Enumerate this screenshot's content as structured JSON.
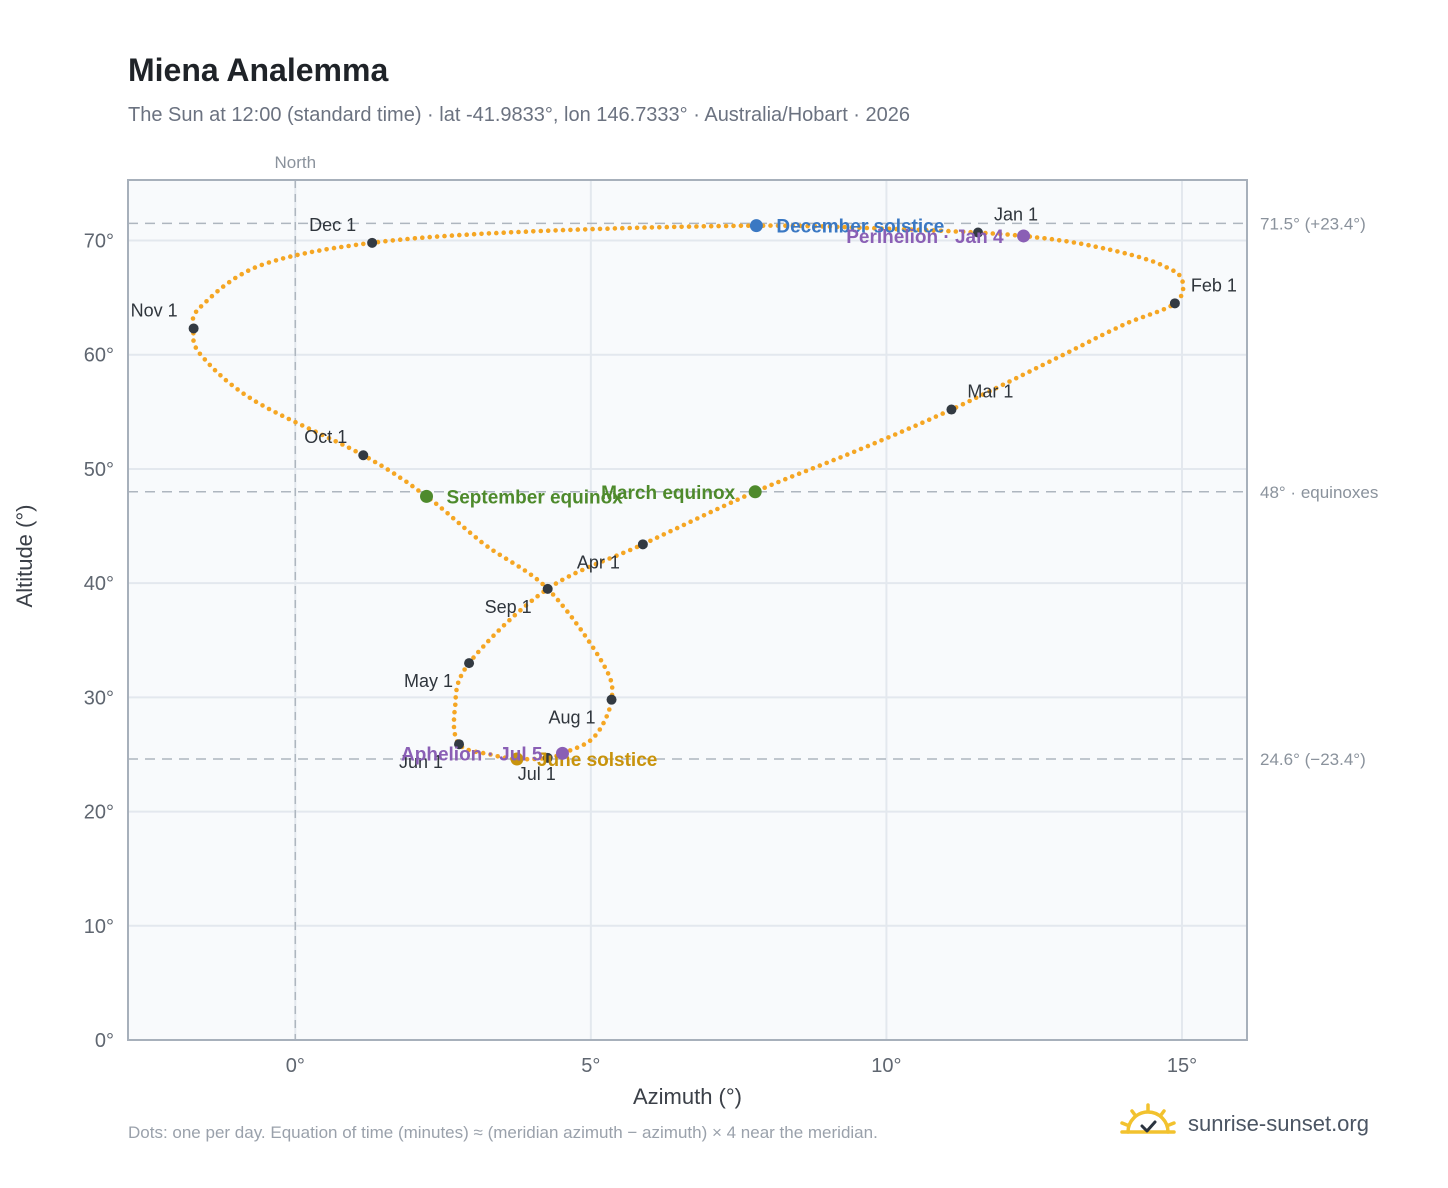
{
  "header": {
    "title": "Miena Analemma",
    "subtitle": "The Sun at 12:00 (standard time) · lat -41.9833°, lon 146.7333° · Australia/Hobart · 2026"
  },
  "footer": {
    "note": "Dots: one per day. Equation of time (minutes) ≈ (meridian azimuth − azimuth) × 4 near the meridian.",
    "brand": "sunrise-sunset.org",
    "brand_icon": "sun-check-icon"
  },
  "colors": {
    "path": "#f5a623",
    "month_dot": "#333a42",
    "equinox": "#4e8a2c",
    "solstice_dec": "#3a78c3",
    "solstice_jun": "#c8930c",
    "apsis": "#8a5fb5",
    "reference_line": "#aeb6bf",
    "plot_bg": "#f8fafc",
    "grid": "#e3e8ee"
  },
  "chart_data": {
    "type": "scatter",
    "xlabel": "Azimuth (°)",
    "ylabel": "Altitude (°)",
    "xlim": [
      -2.83,
      16.1
    ],
    "ylim": [
      0,
      75.3
    ],
    "x_ticks": [
      0,
      5,
      10,
      15
    ],
    "x_tick_labels": [
      "0°",
      "5°",
      "10°",
      "15°"
    ],
    "y_ticks": [
      0,
      10,
      20,
      30,
      40,
      50,
      60,
      70
    ],
    "y_tick_labels": [
      "0°",
      "10°",
      "20°",
      "30°",
      "40°",
      "50°",
      "60°",
      "70°"
    ],
    "grid": true,
    "north_line": {
      "x": 0,
      "label": "North"
    },
    "reference_lines": [
      {
        "y": 71.5,
        "label": "71.5° (+23.4°)"
      },
      {
        "y": 48.0,
        "label": "48° · equinoxes"
      },
      {
        "y": 24.6,
        "label": "24.6° (−23.4°)"
      }
    ],
    "path_knots": [
      [
        11.55,
        70.7
      ],
      [
        12.32,
        70.4
      ],
      [
        13.2,
        69.8
      ],
      [
        14.1,
        68.8
      ],
      [
        14.68,
        67.8
      ],
      [
        15.0,
        66.6
      ],
      [
        14.88,
        64.5
      ],
      [
        14.0,
        62.6
      ],
      [
        12.8,
        59.5
      ],
      [
        11.1,
        55.2
      ],
      [
        9.5,
        51.6
      ],
      [
        7.78,
        48.0
      ],
      [
        5.88,
        43.4
      ],
      [
        4.27,
        39.5
      ],
      [
        2.94,
        33.0
      ],
      [
        2.7,
        29.0
      ],
      [
        2.77,
        25.9
      ],
      [
        3.3,
        25.0
      ],
      [
        3.75,
        24.6
      ],
      [
        4.27,
        24.7
      ],
      [
        4.52,
        25.1
      ],
      [
        5.05,
        26.5
      ],
      [
        5.35,
        29.8
      ],
      [
        5.2,
        33.0
      ],
      [
        4.27,
        39.5
      ],
      [
        3.2,
        43.4
      ],
      [
        2.22,
        47.6
      ],
      [
        1.15,
        51.2
      ],
      [
        -0.7,
        56.0
      ],
      [
        -1.6,
        60.0
      ],
      [
        -1.72,
        62.3
      ],
      [
        -1.6,
        64.2
      ],
      [
        -0.6,
        67.8
      ],
      [
        1.3,
        69.8
      ],
      [
        4.0,
        70.8
      ],
      [
        7.8,
        71.3
      ],
      [
        10.2,
        71.0
      ],
      [
        11.55,
        70.7
      ]
    ],
    "month_points": [
      {
        "label": "Jan 1",
        "x": 11.55,
        "y": 70.7
      },
      {
        "label": "Feb 1",
        "x": 14.88,
        "y": 64.5
      },
      {
        "label": "Mar 1",
        "x": 11.1,
        "y": 55.2
      },
      {
        "label": "Apr 1",
        "x": 5.88,
        "y": 43.4
      },
      {
        "label": "May 1",
        "x": 2.94,
        "y": 33.0
      },
      {
        "label": "Jun 1",
        "x": 2.77,
        "y": 25.9
      },
      {
        "label": "Jul 1",
        "x": 4.27,
        "y": 24.7
      },
      {
        "label": "Aug 1",
        "x": 5.35,
        "y": 29.8
      },
      {
        "label": "Sep 1",
        "x": 4.27,
        "y": 39.5
      },
      {
        "label": "Oct 1",
        "x": 1.15,
        "y": 51.2
      },
      {
        "label": "Nov 1",
        "x": -1.72,
        "y": 62.3
      },
      {
        "label": "Dec 1",
        "x": 1.3,
        "y": 69.8
      }
    ],
    "events": [
      {
        "label": "December solstice",
        "x": 7.8,
        "y": 71.3,
        "color_key": "solstice_dec"
      },
      {
        "label": "Perihelion · Jan 4",
        "x": 12.32,
        "y": 70.4,
        "color_key": "apsis"
      },
      {
        "label": "March equinox",
        "x": 7.78,
        "y": 48.0,
        "color_key": "equinox"
      },
      {
        "label": "September equinox",
        "x": 2.22,
        "y": 47.6,
        "color_key": "equinox"
      },
      {
        "label": "June solstice",
        "x": 3.75,
        "y": 24.6,
        "color_key": "solstice_jun"
      },
      {
        "label": "Aphelion · Jul 5",
        "x": 4.52,
        "y": 25.1,
        "color_key": "apsis"
      }
    ]
  }
}
